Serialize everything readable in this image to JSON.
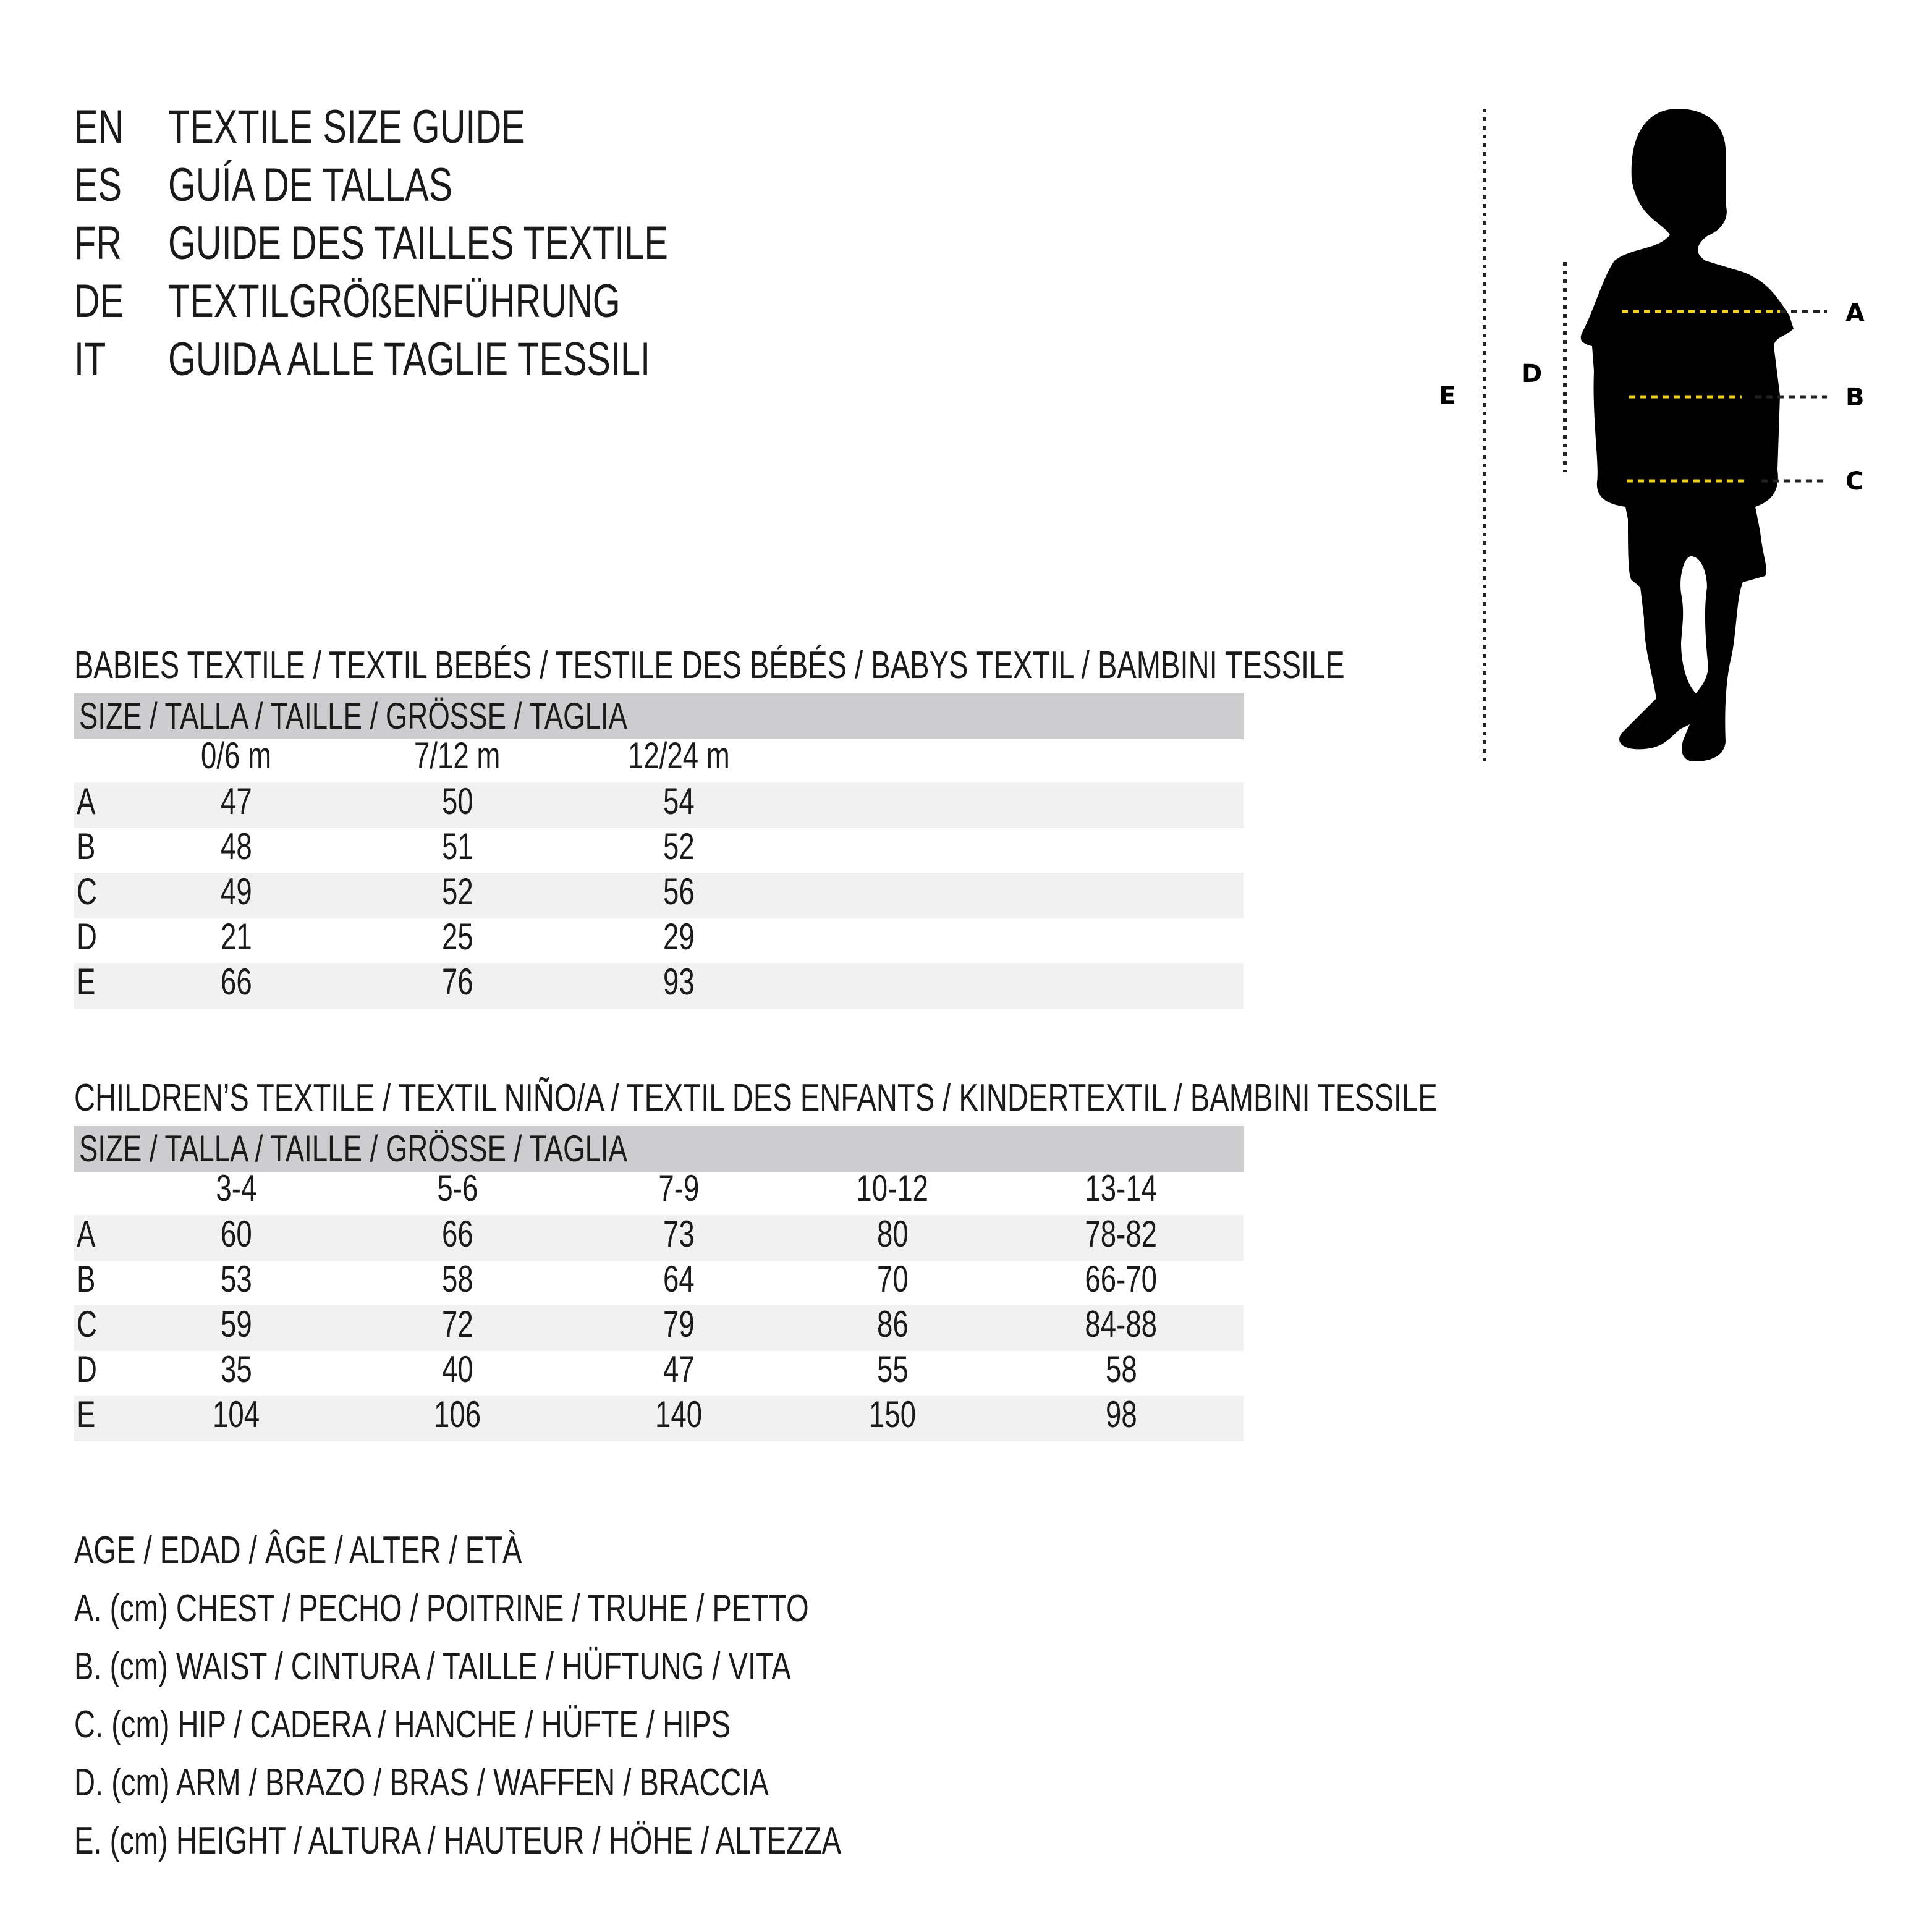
{
  "titles": [
    {
      "code": "EN",
      "text": "TEXTILE SIZE GUIDE"
    },
    {
      "code": "ES",
      "text": "GUÍA DE TALLAS"
    },
    {
      "code": "FR",
      "text": "GUIDE DES TAILLES TEXTILE"
    },
    {
      "code": "DE",
      "text": "TEXTILGRÖßENFÜHRUNG"
    },
    {
      "code": "IT",
      "text": "GUIDA ALLE TAGLIE TESSILI"
    }
  ],
  "babies": {
    "heading": "BABIES TEXTILE / TEXTIL BEBÉS / TESTILE DES BÉBÉS / BABYS TEXTIL / BAMBINI TESSILE",
    "size_label": "SIZE / TALLA / TAILLE / GRÖSSE / TAGLIA",
    "columns": [
      "0/6 m",
      "7/12 m",
      "12/24 m"
    ],
    "rows": [
      {
        "label": "A",
        "values": [
          "47",
          "50",
          "54"
        ]
      },
      {
        "label": "B",
        "values": [
          "48",
          "51",
          "52"
        ]
      },
      {
        "label": "C",
        "values": [
          "49",
          "52",
          "56"
        ]
      },
      {
        "label": "D",
        "values": [
          "21",
          "25",
          "29"
        ]
      },
      {
        "label": "E",
        "values": [
          "66",
          "76",
          "93"
        ]
      }
    ]
  },
  "children": {
    "heading": "CHILDREN’S TEXTILE / TEXTIL NIÑO/A / TEXTIL DES ENFANTS / KINDERTEXTIL / BAMBINI TESSILE",
    "size_label": "SIZE / TALLA / TAILLE / GRÖSSE / TAGLIA",
    "columns": [
      "3-4",
      "5-6",
      "7-9",
      "10-12",
      "13-14"
    ],
    "rows": [
      {
        "label": "A",
        "values": [
          "60",
          "66",
          "73",
          "80",
          "78-82"
        ]
      },
      {
        "label": "B",
        "values": [
          "53",
          "58",
          "64",
          "70",
          "66-70"
        ]
      },
      {
        "label": "C",
        "values": [
          "59",
          "72",
          "79",
          "86",
          "84-88"
        ]
      },
      {
        "label": "D",
        "values": [
          "35",
          "40",
          "47",
          "55",
          "58"
        ]
      },
      {
        "label": "E",
        "values": [
          "104",
          "106",
          "140",
          "150",
          "98"
        ]
      }
    ]
  },
  "legend": [
    "AGE / EDAD / ÂGE / ALTER / ETÀ",
    "A. (cm) CHEST / PECHO / POITRINE / TRUHE / PETTO",
    "B. (cm) WAIST / CINTURA / TAILLE / HÜFTUNG / VITA",
    "C. (cm) HIP / CADERA / HANCHE / HÜFTE / HIPS",
    "D. (cm) ARM / BRAZO / BRAS / WAFFEN / BRACCIA",
    "E. (cm) HEIGHT / ALTURA / HAUTEUR / HÖHE / ALTEZZA"
  ],
  "figure": {
    "labels": {
      "A": "A",
      "B": "B",
      "C": "C",
      "D": "D",
      "E": "E"
    },
    "measure_color": "#f2d21b",
    "silhouette_color": "#000000"
  }
}
